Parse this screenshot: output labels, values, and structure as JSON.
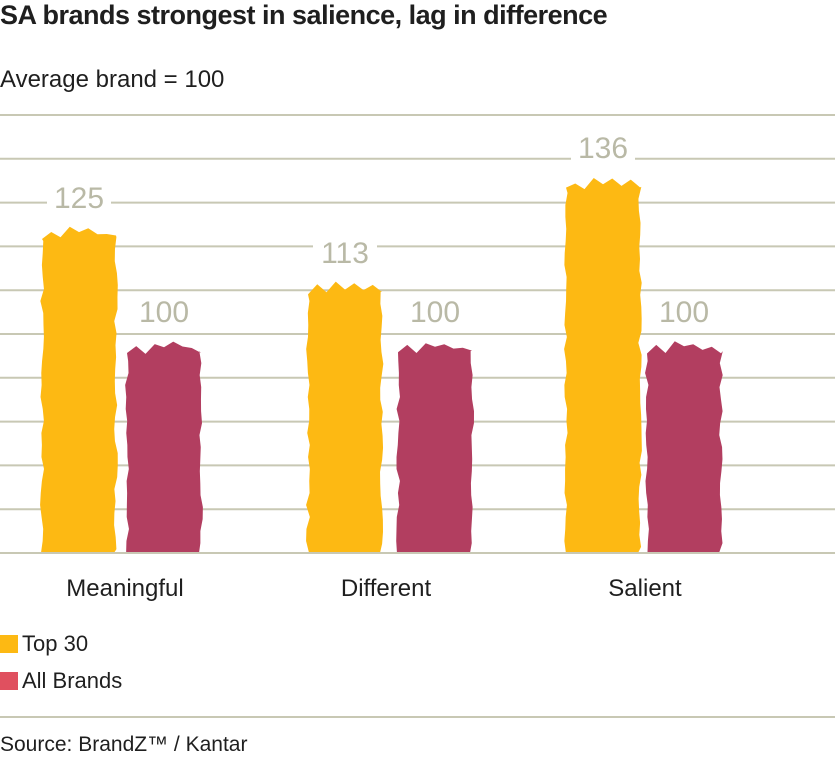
{
  "chart_data": {
    "type": "bar",
    "title": "SA brands strongest in salience, lag in difference",
    "subtitle": "Average brand = 100",
    "categories": [
      "Meaningful",
      "Different",
      "Salient"
    ],
    "series": [
      {
        "name": "Top 30",
        "color": "#FDB913",
        "values": [
          125,
          113,
          136
        ]
      },
      {
        "name": "All Brands",
        "color": "#B23E60",
        "legend_color": "#E0505F",
        "values": [
          100,
          100,
          100
        ]
      }
    ],
    "ylim": [
      54,
      150
    ],
    "grid": true,
    "legend": "bottom-left",
    "value_label_color": "#B9B9A6"
  },
  "source": "Source: BrandZ™ / Kantar"
}
